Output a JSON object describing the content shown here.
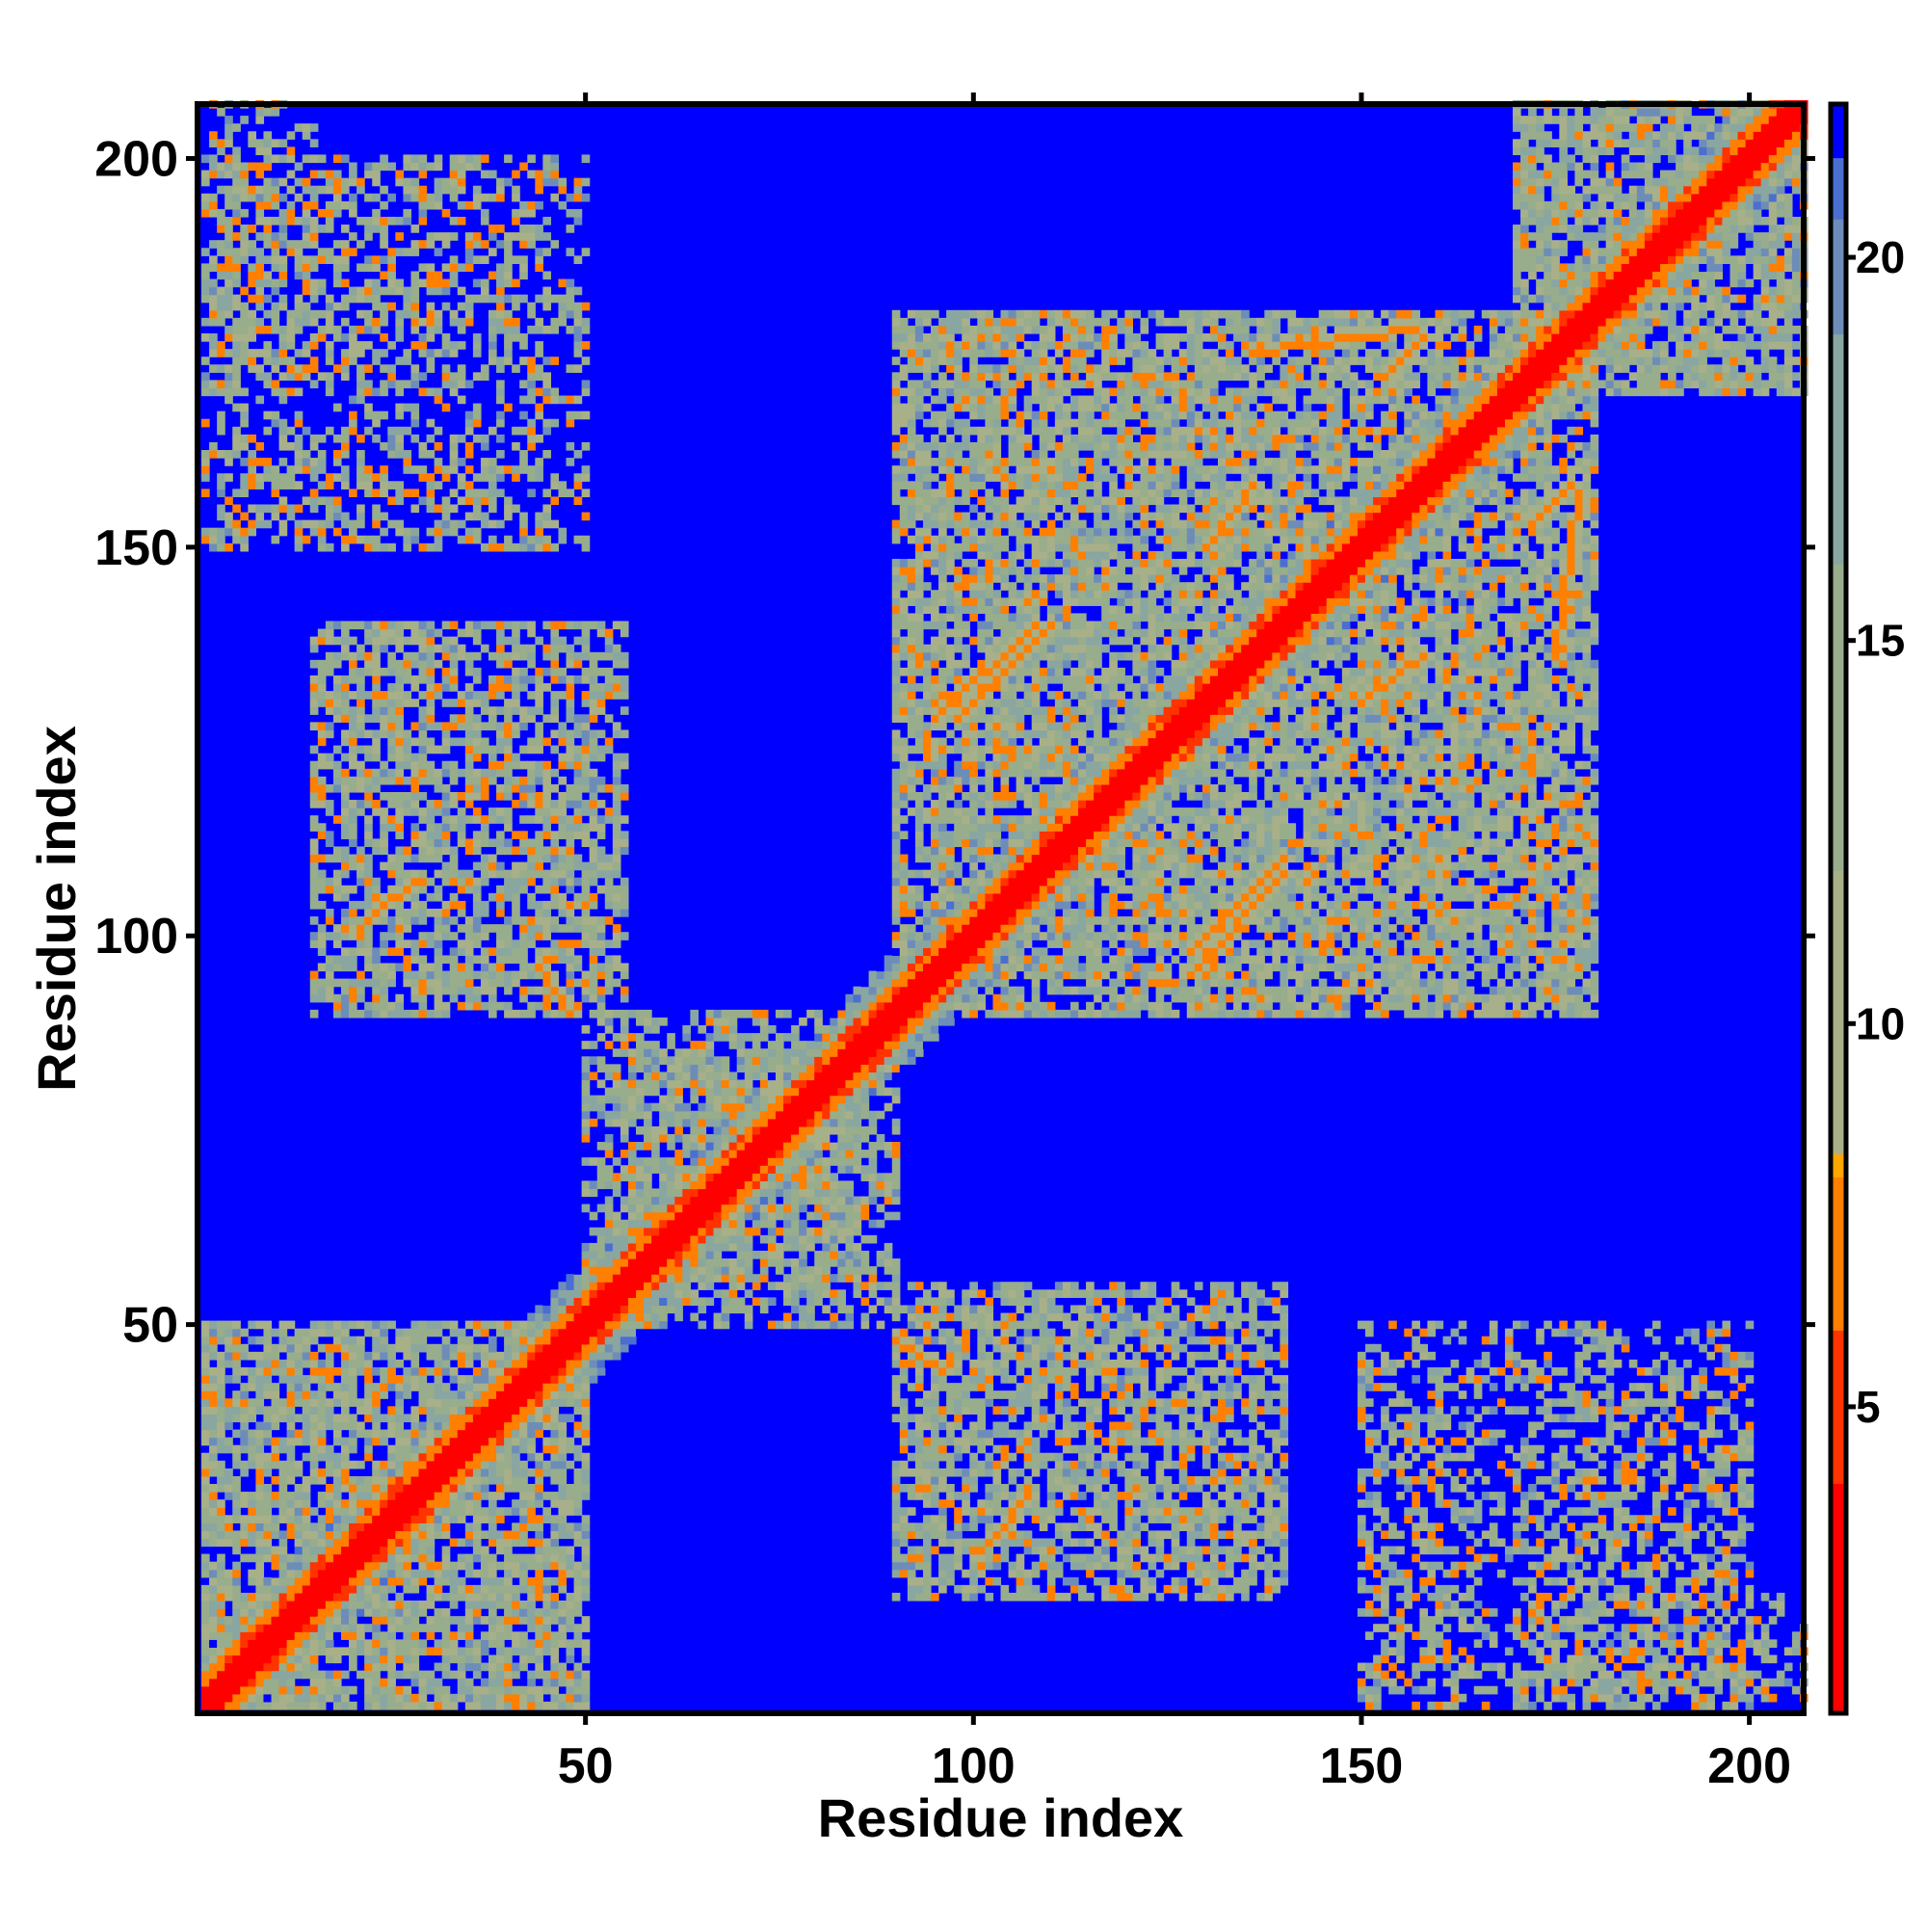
{
  "chart_data": {
    "type": "heatmap",
    "xlabel": "Residue index",
    "ylabel": "Residue index",
    "xlim": [
      1,
      207
    ],
    "ylim": [
      1,
      207
    ],
    "x_ticks": [
      50,
      100,
      150,
      200
    ],
    "y_ticks": [
      50,
      100,
      150,
      200
    ],
    "colorbar": {
      "ticks": [
        5,
        10,
        15,
        20
      ],
      "range": [
        1,
        22
      ],
      "colors": [
        {
          "value": 1,
          "color": "#ff0000"
        },
        {
          "value": 4,
          "color": "#ff3300"
        },
        {
          "value": 6,
          "color": "#ff7f00"
        },
        {
          "value": 8,
          "color": "#ffa500"
        },
        {
          "value": 8.3,
          "color": "#a8b089"
        },
        {
          "value": 12,
          "color": "#98ad8c"
        },
        {
          "value": 16,
          "color": "#8aa6a0"
        },
        {
          "value": 19,
          "color": "#6d8db8"
        },
        {
          "value": 20.5,
          "color": "#4a6fd0"
        },
        {
          "value": 21.3,
          "color": "#0000ff"
        }
      ]
    },
    "background_color": "#0000ff",
    "diagonal_color": "#ff0000",
    "description_of_data": "Pairwise residue distance map (symmetric). Values read approx.: red ~1-4 on diagonal, orange ~5-8 contacts, green-gray ~9-17, blue >=21.",
    "diagonal": {
      "start": 1,
      "end": 207,
      "band_width": 3
    },
    "contact_regions": [
      {
        "x": [
          1,
          50
        ],
        "y": [
          1,
          50
        ],
        "level": "near"
      },
      {
        "x": [
          90,
          140
        ],
        "y": [
          15,
          55
        ],
        "level": "mid"
      },
      {
        "x": [
          15,
          55
        ],
        "y": [
          90,
          140
        ],
        "level": "mid"
      },
      {
        "x": [
          150,
          165
        ],
        "y": [
          1,
          45
        ],
        "level": "far"
      },
      {
        "x": [
          170,
          200
        ],
        "y": [
          1,
          45
        ],
        "level": "far"
      },
      {
        "x": [
          1,
          50
        ],
        "y": [
          150,
          200
        ],
        "level": "far"
      },
      {
        "x": [
          90,
          180
        ],
        "y": [
          90,
          180
        ],
        "level": "near"
      },
      {
        "x": [
          170,
          207
        ],
        "y": [
          170,
          207
        ],
        "level": "near"
      },
      {
        "x": [
          1,
          15
        ],
        "y": [
          170,
          207
        ],
        "level": "far"
      },
      {
        "x": [
          50,
          85
        ],
        "y": [
          55,
          90
        ],
        "level": "near"
      }
    ],
    "stripes": [
      {
        "x1": 90,
        "y1": 48,
        "x2": 96,
        "y2": 44
      },
      {
        "x1": 102,
        "y1": 22,
        "x2": 107,
        "y2": 28
      },
      {
        "x1": 22,
        "y1": 102,
        "x2": 28,
        "y2": 107
      },
      {
        "x1": 44,
        "y1": 96,
        "x2": 48,
        "y2": 90
      },
      {
        "x1": 95,
        "y1": 128,
        "x2": 108,
        "y2": 140
      },
      {
        "x1": 128,
        "y1": 98,
        "x2": 140,
        "y2": 110
      },
      {
        "x1": 150,
        "y1": 130,
        "x2": 158,
        "y2": 136
      },
      {
        "x1": 130,
        "y1": 150,
        "x2": 136,
        "y2": 158
      },
      {
        "x1": 136,
        "y1": 175,
        "x2": 157,
        "y2": 178
      },
      {
        "x1": 172,
        "y1": 153,
        "x2": 177,
        "y2": 158
      }
    ]
  }
}
